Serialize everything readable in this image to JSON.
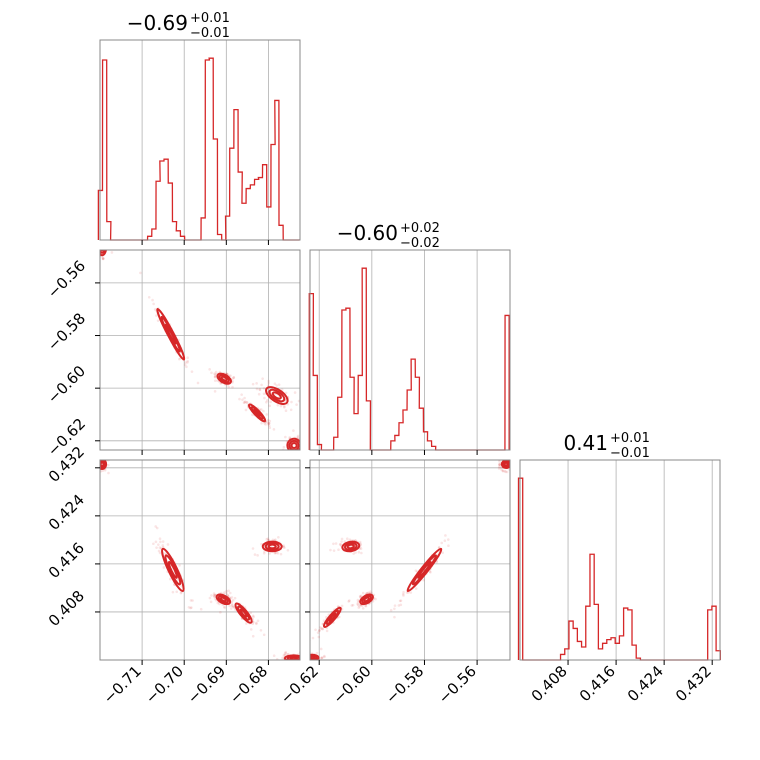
{
  "chart_data": {
    "type": "corner",
    "color": "#d62728",
    "grid": true,
    "parameters": [
      {
        "id": "p1",
        "median": "−0.69",
        "plus": "+0.01",
        "minus": "−0.01",
        "range": [
          -0.72,
          -0.6725
        ],
        "ticks": [
          -0.71,
          -0.7,
          -0.69,
          -0.68
        ],
        "tick_labels": [
          "−0.71",
          "−0.70",
          "−0.69",
          "−0.68"
        ]
      },
      {
        "id": "p2",
        "median": "−0.60",
        "plus": "+0.02",
        "minus": "−0.02",
        "range": [
          -0.6235,
          -0.5475
        ],
        "ticks": [
          -0.62,
          -0.6,
          -0.58,
          -0.56
        ],
        "tick_labels": [
          "−0.62",
          "−0.60",
          "−0.58",
          "−0.56"
        ]
      },
      {
        "id": "p3",
        "median": "0.41",
        "plus": "+0.01",
        "minus": "−0.01",
        "range": [
          0.4,
          0.4333
        ],
        "ticks": [
          0.408,
          0.416,
          0.424,
          0.432
        ],
        "tick_labels": [
          "0.408",
          "0.416",
          "0.424",
          "0.432"
        ]
      }
    ],
    "histograms": {
      "p1": {
        "x": [
          -0.7199,
          -0.7189,
          -0.7179,
          -0.717,
          -0.716,
          -0.715,
          -0.714,
          -0.7131,
          -0.7121,
          -0.7111,
          -0.7101,
          -0.7092,
          -0.7082,
          -0.7072,
          -0.7062,
          -0.7053,
          -0.7043,
          -0.7033,
          -0.7023,
          -0.7014,
          -0.7004,
          -0.6994,
          -0.6984,
          -0.6975,
          -0.6965,
          -0.6955,
          -0.6945,
          -0.6936,
          -0.6926,
          -0.6916,
          -0.6906,
          -0.6897,
          -0.6887,
          -0.6877,
          -0.6867,
          -0.6858,
          -0.6848,
          -0.6838,
          -0.6828,
          -0.6819,
          -0.6809,
          -0.6799,
          -0.6789,
          -0.678,
          -0.677,
          -0.676,
          -0.675,
          -0.6741,
          -0.6731
        ],
        "density": [
          0.27,
          0.98,
          0.1,
          0.0,
          0.0,
          0.0,
          0.0,
          0.0,
          0.0,
          0.0,
          0.0,
          0.0,
          0.02,
          0.06,
          0.32,
          0.43,
          0.44,
          0.31,
          0.1,
          0.05,
          0.02,
          0.0,
          0.0,
          0.0,
          0.0,
          0.12,
          0.98,
          0.99,
          0.55,
          0.03,
          0.0,
          0.13,
          0.5,
          0.71,
          0.37,
          0.2,
          0.28,
          0.3,
          0.33,
          0.34,
          0.41,
          0.18,
          0.52,
          0.76,
          0.08,
          0.0,
          0.0,
          0.0,
          0.0
        ]
      },
      "p2": {
        "x": [
          -0.623,
          -0.6215,
          -0.6199,
          -0.6184,
          -0.6168,
          -0.6153,
          -0.6137,
          -0.6122,
          -0.6106,
          -0.6091,
          -0.6075,
          -0.606,
          -0.6044,
          -0.6029,
          -0.6013,
          -0.5998,
          -0.5982,
          -0.5967,
          -0.5951,
          -0.5936,
          -0.592,
          -0.5905,
          -0.5889,
          -0.5874,
          -0.5858,
          -0.5843,
          -0.5827,
          -0.5812,
          -0.5796,
          -0.5781,
          -0.5765,
          -0.575,
          -0.5734,
          -0.5719,
          -0.5703,
          -0.5688,
          -0.5672,
          -0.5657,
          -0.5641,
          -0.5626,
          -0.561,
          -0.5595,
          -0.5579,
          -0.5564,
          -0.5548,
          -0.5533,
          -0.5517,
          -0.5502,
          -0.5486
        ],
        "density": [
          0.86,
          0.41,
          0.03,
          0.0,
          0.0,
          0.0,
          0.07,
          0.29,
          0.77,
          0.78,
          0.4,
          0.2,
          0.41,
          1.0,
          0.27,
          0.0,
          0.0,
          0.0,
          0.0,
          0.0,
          0.05,
          0.08,
          0.15,
          0.22,
          0.33,
          0.5,
          0.4,
          0.23,
          0.1,
          0.05,
          0.02,
          0.0,
          0.0,
          0.0,
          0.0,
          0.0,
          0.0,
          0.0,
          0.0,
          0.0,
          0.0,
          0.0,
          0.0,
          0.0,
          0.0,
          0.0,
          0.0,
          0.0,
          0.74
        ]
      },
      "p3": {
        "x": [
          0.4001,
          0.4008,
          0.4015,
          0.4022,
          0.4029,
          0.4036,
          0.4043,
          0.405,
          0.4057,
          0.4064,
          0.4071,
          0.4078,
          0.4085,
          0.4092,
          0.4099,
          0.4106,
          0.4113,
          0.412,
          0.4127,
          0.4134,
          0.4141,
          0.4148,
          0.4155,
          0.4162,
          0.4169,
          0.4176,
          0.4183,
          0.419,
          0.4197,
          0.4204,
          0.4211,
          0.4218,
          0.4225,
          0.4232,
          0.4239,
          0.4246,
          0.4253,
          0.426,
          0.4267,
          0.4274,
          0.4281,
          0.4288,
          0.4295,
          0.4302,
          0.4309,
          0.4316,
          0.4323,
          0.433
        ],
        "density": [
          0.98,
          0.0,
          0.0,
          0.0,
          0.0,
          0.0,
          0.0,
          0.0,
          0.0,
          0.0,
          0.03,
          0.06,
          0.21,
          0.17,
          0.1,
          0.07,
          0.29,
          0.57,
          0.3,
          0.06,
          0.09,
          0.11,
          0.12,
          0.09,
          0.13,
          0.28,
          0.27,
          0.08,
          0.01,
          0.0,
          0.0,
          0.0,
          0.0,
          0.0,
          0.0,
          0.0,
          0.0,
          0.0,
          0.0,
          0.0,
          0.0,
          0.0,
          0.0,
          0.0,
          0.0,
          0.27,
          0.29,
          0.05
        ]
      }
    },
    "joint": [
      {
        "x": "p1",
        "y": "p2",
        "clusters": [
          {
            "cx": -0.7195,
            "cy": -0.5466,
            "sx": 0.0006,
            "sy": 0.0018,
            "corr": 0
          },
          {
            "cx": -0.7032,
            "cy": -0.5795,
            "sx": 0.002,
            "sy": 0.006,
            "corr": -0.97
          },
          {
            "cx": -0.6905,
            "cy": -0.5964,
            "sx": 0.001,
            "sy": 0.0012,
            "corr": -0.5
          },
          {
            "cx": -0.6827,
            "cy": -0.6094,
            "sx": 0.0012,
            "sy": 0.002,
            "corr": -0.9
          },
          {
            "cx": -0.678,
            "cy": -0.6028,
            "sx": 0.0016,
            "sy": 0.002,
            "corr": -0.6
          },
          {
            "cx": -0.6739,
            "cy": -0.6218,
            "sx": 0.001,
            "sy": 0.0016,
            "corr": 0
          }
        ]
      },
      {
        "x": "p1",
        "y": "p3",
        "clusters": [
          {
            "cx": -0.7195,
            "cy": 0.4326,
            "sx": 0.0006,
            "sy": 0.0005,
            "corr": 0
          },
          {
            "cx": -0.7027,
            "cy": 0.415,
            "sx": 0.0016,
            "sy": 0.0022,
            "corr": -0.9
          },
          {
            "cx": -0.6907,
            "cy": 0.4101,
            "sx": 0.001,
            "sy": 0.0005,
            "corr": -0.5
          },
          {
            "cx": -0.6859,
            "cy": 0.4078,
            "sx": 0.0012,
            "sy": 0.001,
            "corr": -0.85
          },
          {
            "cx": -0.6791,
            "cy": 0.4189,
            "sx": 0.0014,
            "sy": 0.0005,
            "corr": 0
          },
          {
            "cx": -0.674,
            "cy": 0.4003,
            "sx": 0.0013,
            "sy": 0.0003,
            "corr": 0
          }
        ]
      },
      {
        "x": "p2",
        "y": "p3",
        "clusters": [
          {
            "cx": -0.6227,
            "cy": 0.4004,
            "sx": 0.0015,
            "sy": 0.0003,
            "corr": 0
          },
          {
            "cx": -0.615,
            "cy": 0.4071,
            "sx": 0.002,
            "sy": 0.001,
            "corr": 0.9
          },
          {
            "cx": -0.608,
            "cy": 0.4189,
            "sx": 0.002,
            "sy": 0.0005,
            "corr": 0.2
          },
          {
            "cx": -0.602,
            "cy": 0.4101,
            "sx": 0.0015,
            "sy": 0.0005,
            "corr": 0.5
          },
          {
            "cx": -0.58,
            "cy": 0.415,
            "sx": 0.004,
            "sy": 0.0022,
            "corr": 0.97
          },
          {
            "cx": -0.549,
            "cy": 0.4326,
            "sx": 0.001,
            "sy": 0.0004,
            "corr": 0
          }
        ]
      }
    ]
  }
}
